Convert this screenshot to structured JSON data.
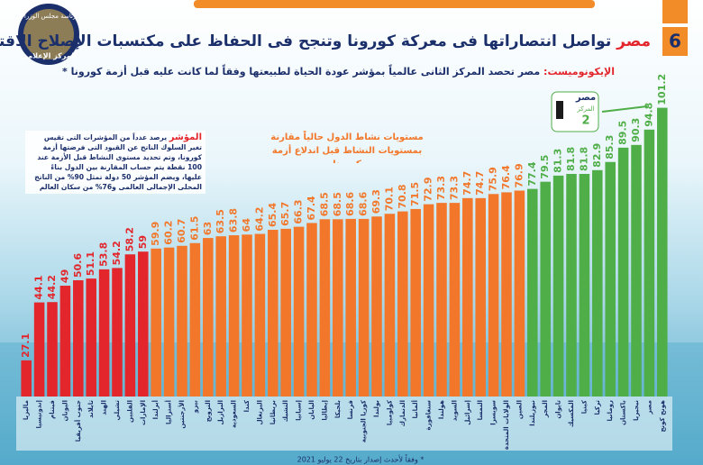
{
  "header": {
    "issue_number": "6",
    "title_highlight": "مصر",
    "title": "تواصل انتصاراتها فى معركة كورونا وتنجح فى الحفاظ على مكتسبات الإصلاح الاقتصادى",
    "subtitle_source": "الإيكونوميست:",
    "subtitle": "مصر تحصد المركز الثانى عالمياً بمؤشر عودة الحياة لطبيعتها وفقاً لما كانت عليه قبل أزمة كورونا *",
    "logo_top": "رئاسة مجلس الوزراء",
    "logo_bottom": "المركز الإعلامي"
  },
  "badge": {
    "country": "مصر",
    "label": "المركز",
    "rank": "2"
  },
  "note": {
    "title": "المؤشر",
    "text": "يرصد عدداً من المؤشرات التى تقيس تغير السلوك الناتج عن القيود التى فرضتها أزمة كورونا، وتم تحديد مستوى النشاط قبل الأزمة عند 100 نقطة يتم حساب المقارنة بين الدول بناءً عليها، ويضم المؤشر 50 دولة تمثل 90% من الناتج المحلى الإجمالى العالمى و76% من سكان العالم"
  },
  "footnote": "* وفقاً لأحدث إصدار بتاريخ 22 يوليو 2021",
  "chart_data": {
    "type": "bar",
    "title": "مستويات نشاط الدول حالياً مقارنة بمستويات النشاط قبل اندلاع أزمة كورونا",
    "categories": [
      "ماليزيا",
      "إندونيسيا",
      "فيتنام",
      "اليونان",
      "جنوب أفريقيا",
      "تايلاند",
      "الهند",
      "تشيلي",
      "الفلبين",
      "الإمارات",
      "أيرلندا",
      "أستراليا",
      "الأرجنتين",
      "بيرو",
      "النرويج",
      "البرازيل",
      "السعودية",
      "كندا",
      "البرتغال",
      "بريطانيا",
      "التشيك",
      "إسبانيا",
      "اليابان",
      "إيطاليا",
      "بلجيكا",
      "فرنسا",
      "كوريا الجنوبية",
      "بولندا",
      "كولومبيا",
      "الدنمارك",
      "ألمانيا",
      "سنغافورة",
      "هولندا",
      "السويد",
      "إسرائيل",
      "النمسا",
      "سويسرا",
      "الولايات المتحدة",
      "الصين",
      "نيوزيلندا",
      "المجر",
      "تايوان",
      "المكسيك",
      "كينيا",
      "تركيا",
      "رومانيا",
      "باكستان",
      "نيجيريا",
      "مصر",
      "هونج كونج"
    ],
    "values": [
      27.1,
      44.1,
      44.2,
      49,
      50.6,
      51.1,
      53.8,
      54.2,
      58.2,
      59,
      59.9,
      60.2,
      60.7,
      61.5,
      63,
      63.5,
      63.8,
      64,
      64.2,
      65.4,
      65.7,
      66.3,
      67.4,
      68.5,
      68.5,
      68.6,
      68.6,
      69.3,
      70.1,
      70.8,
      71.5,
      72.9,
      73.3,
      73.3,
      74.7,
      74.7,
      75.9,
      76.4,
      76.9,
      77.4,
      79.5,
      81.3,
      81.8,
      81.8,
      82.9,
      85.3,
      89.5,
      90.3,
      94.8,
      101.2
    ],
    "colors": [
      "#e3262b",
      "#e3262b",
      "#e3262b",
      "#e3262b",
      "#e3262b",
      "#e3262b",
      "#e3262b",
      "#e3262b",
      "#e3262b",
      "#e3262b",
      "#f2772a",
      "#f2772a",
      "#f2772a",
      "#f2772a",
      "#f2772a",
      "#f2772a",
      "#f2772a",
      "#f2772a",
      "#f2772a",
      "#f2772a",
      "#f2772a",
      "#f2772a",
      "#f2772a",
      "#f2772a",
      "#f2772a",
      "#f2772a",
      "#f2772a",
      "#f2772a",
      "#f2772a",
      "#f2772a",
      "#f2772a",
      "#f2772a",
      "#f2772a",
      "#f2772a",
      "#f2772a",
      "#f2772a",
      "#f2772a",
      "#f2772a",
      "#f2772a",
      "#4fae48",
      "#4fae48",
      "#4fae48",
      "#4fae48",
      "#4fae48",
      "#4fae48",
      "#4fae48",
      "#4fae48",
      "#4fae48",
      "#4fae48",
      "#4fae48"
    ],
    "ylim": [
      16.5,
      104
    ]
  }
}
